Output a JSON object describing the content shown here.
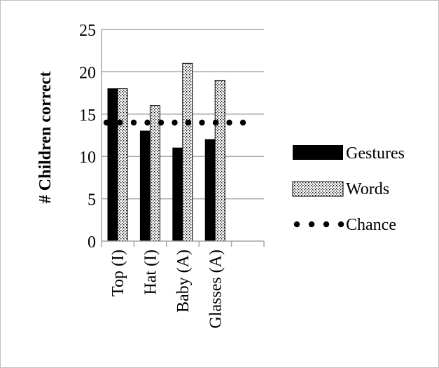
{
  "chart_data": {
    "type": "bar",
    "title": "",
    "xlabel": "",
    "ylabel": "# Children correct",
    "ylim": [
      0,
      25
    ],
    "yticks": [
      0,
      5,
      10,
      15,
      20,
      25
    ],
    "categories": [
      "Top (I)",
      "Hat (I)",
      "Baby (A)",
      "Glasses (A)"
    ],
    "series": [
      {
        "name": "Gestures",
        "values": [
          18,
          13,
          11,
          12
        ],
        "fill": "#000000"
      },
      {
        "name": "Words",
        "values": [
          18,
          16,
          21,
          19
        ],
        "fill": "dotted"
      }
    ],
    "reference_line": {
      "name": "Chance",
      "value": 14,
      "style": "dotted"
    },
    "grid": true,
    "legend": "right",
    "colors": {
      "gestures": "#000000",
      "words_bg": "#ffffff",
      "grid": "#a6a6a6",
      "border": "#bfbfbf"
    }
  }
}
